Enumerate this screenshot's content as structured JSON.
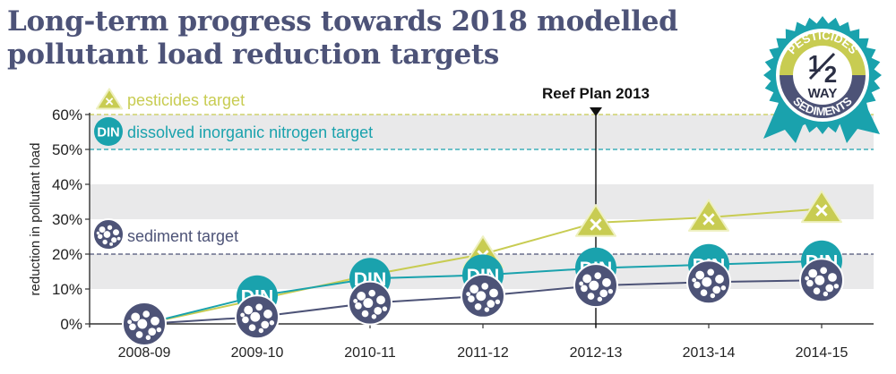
{
  "title_line1": "Long-term progress towards 2018 modelled",
  "title_line2": "pollutant load reduction targets",
  "badge": {
    "top_text": "PESTICIDES",
    "half_numerator": "1",
    "half_denominator": "2",
    "way_text": "WAY",
    "bottom_text": "SEDIMENTS"
  },
  "annotation": {
    "label": "Reef Plan 2013",
    "category": "2012-13"
  },
  "marker_text": {
    "pesticides": "×",
    "din": "DIN"
  },
  "colors": {
    "pesticides": "#c8cc52",
    "din": "#1aa2ad",
    "sediment": "#4d5377",
    "band": "#e9e9ea",
    "target_line": "#8a8c98",
    "axis_text": "#222222"
  },
  "chart_data": {
    "type": "line",
    "categories": [
      "2008-09",
      "2009-10",
      "2010-11",
      "2011-12",
      "2012-13",
      "2013-14",
      "2014-15"
    ],
    "ylabel": "reduction in pollutant load",
    "ylim": [
      0,
      60
    ],
    "yticks": [
      "0%",
      "10%",
      "20%",
      "30%",
      "40%",
      "50%",
      "60%"
    ],
    "series": [
      {
        "key": "pesticides",
        "values": [
          0,
          7,
          14,
          20,
          29,
          30.5,
          33
        ]
      },
      {
        "key": "din",
        "values": [
          0,
          8,
          13,
          14,
          16,
          17,
          18
        ]
      },
      {
        "key": "sediment",
        "values": [
          0,
          2,
          6,
          8,
          11,
          12,
          12.5
        ]
      }
    ],
    "targets": [
      {
        "key": "pesticides",
        "label": "pesticides target",
        "value": 60
      },
      {
        "key": "din",
        "label": "dissolved inorganic nitrogen target",
        "value": 50
      },
      {
        "key": "sediment",
        "label": "sediment target",
        "value": 20
      }
    ],
    "bands": [
      [
        10,
        20
      ],
      [
        30,
        40
      ],
      [
        50,
        60
      ]
    ]
  }
}
